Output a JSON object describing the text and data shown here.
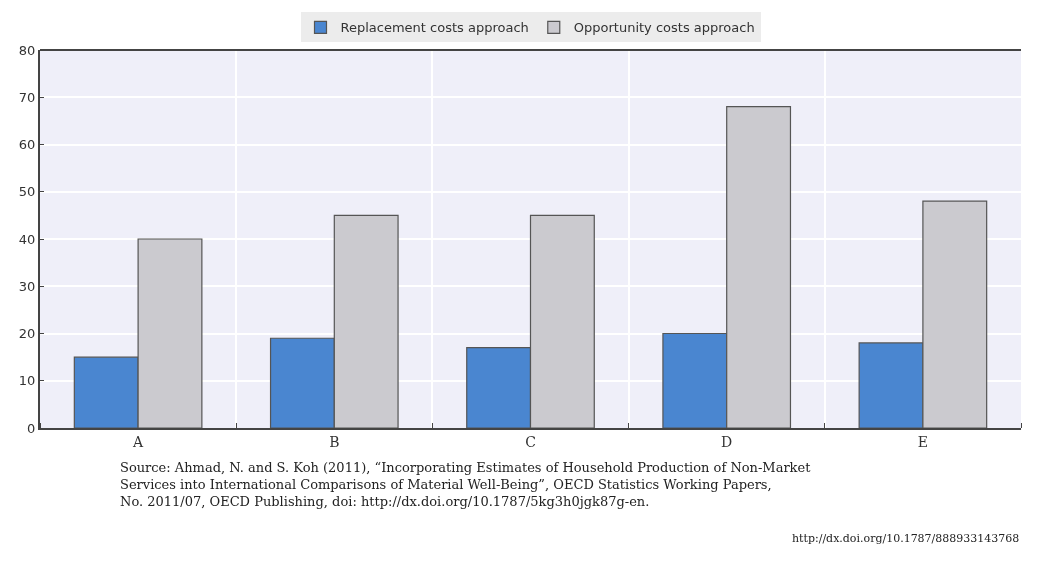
{
  "chart_data": {
    "type": "bar",
    "categories": [
      "A",
      "B",
      "C",
      "D",
      "E"
    ],
    "series": [
      {
        "name": "Replacement costs approach",
        "color": "#4a86d0",
        "values": [
          15,
          19,
          17,
          20,
          18
        ]
      },
      {
        "name": "Opportunity costs approach",
        "color": "#cbcacf",
        "values": [
          40,
          45,
          45,
          68,
          48
        ]
      }
    ],
    "ylim": [
      0,
      80
    ],
    "yticks": [
      0,
      10,
      20,
      30,
      40,
      50,
      60,
      70,
      80
    ],
    "grid": true,
    "legend": "top",
    "annotations": [
      "Source: Ahmad, N. and S. Koh (2011), “Incorporating Estimates of Household Production of Non-Market\nServices into International Comparisons of Material Well-Being”, OECD Statistics Working Papers,\nNo. 2011/07, OECD Publishing, doi: http://dx.doi.org/10.1787/5kg3h0jgk87g-en.",
      "http://dx.doi.org/10.1787/888933143768"
    ]
  }
}
